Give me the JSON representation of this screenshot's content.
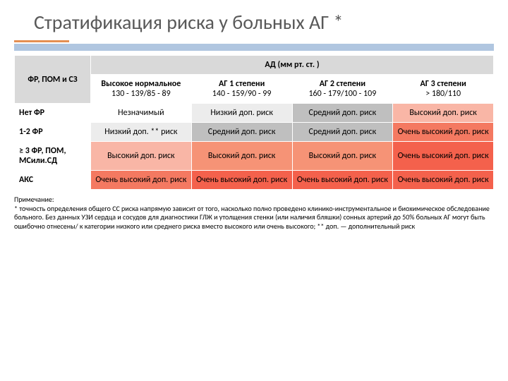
{
  "title": "Стратификация риска у больных АГ *",
  "colors": {
    "accent_orange": "#e48f52",
    "accent_blue": "#b0c6e0",
    "header_grey": "#d9d9d9",
    "cell_white": "#ffffff",
    "cell_vlight": "#ececec",
    "cell_grey": "#bfbfbf",
    "cell_pink": "#f9b6a6",
    "cell_lsalmon": "#f69376",
    "cell_salmon": "#f47961",
    "cell_red": "#f4614c",
    "title_color": "#595959"
  },
  "typography": {
    "title_fontsize": 28,
    "cell_fontsize": 12,
    "footnote_fontsize": 10,
    "font_family": "Calibri"
  },
  "table": {
    "header_left": "ФР, ПОМ и СЗ",
    "header_top": "АД (мм рт. ст. )",
    "columns": [
      "Высокое нормальное 130 - 139/85 - 89",
      "АГ 1 степени 140 - 159/90 - 99",
      "АГ 2 степени 160 - 179/100 - 109",
      "АГ 3 степени > 180/110"
    ],
    "col_hdr": {
      "c0a": "Высокое нормальное",
      "c0b": "130 - 139/85 - 89",
      "c1a": "АГ 1 степени",
      "c1b": "140 - 159/90 - 99",
      "c2a": "АГ 2 степени",
      "c2b": "160 - 179/100 - 109",
      "c3a": "АГ 3 степени",
      "c3b": "> 180/110"
    },
    "rows": [
      {
        "label": "Нет ФР",
        "cells": [
          "Незначимый",
          "Низкий доп. риск",
          "Средний доп. риск",
          "Высокий доп. риск"
        ],
        "cell_colors": [
          "c-white",
          "c-vlight",
          "c-grey",
          "c-pink"
        ]
      },
      {
        "label": "1-2 ФР",
        "cells": [
          "Низкий доп. ** риск",
          "Средний доп. риск",
          "Средний доп. риск",
          "Очень высокий доп. риск"
        ],
        "cell_colors": [
          "c-vlight",
          "c-grey",
          "c-grey",
          "c-salmon"
        ]
      },
      {
        "label": "≥ 3 ФР, ПОМ, МСили.СД",
        "cells": [
          "Высокий доп. риск",
          "Высокий доп. риск",
          "Высокий доп. риск",
          "Очень высокий доп. риск"
        ],
        "cell_colors": [
          "c-pink",
          "c-lsal",
          "c-lsal",
          "c-red"
        ]
      },
      {
        "label": "АКС",
        "cells": [
          "Очень высокий доп. риск",
          "Очень высокий доп. риск",
          "Очень высокий доп. риск",
          "Очень высокий доп. риск"
        ],
        "cell_colors": [
          "c-salmon",
          "c-red",
          "c-red",
          "c-red"
        ]
      }
    ]
  },
  "footnote": {
    "l1": "Примечание:",
    "l2": "* точность определения общего СС риска напрямую зависит от того, насколько полно проведено клинико-инструментальное и биохимическое обследование больного. Без данных УЗИ сердца и сосудов для диагностики ГЛЖ и утолщения стенки (или наличия бляшки) сонных артерий до 50% больных АГ могут быть ошибочно отнесены/ к категории низкого или среднего риска вместо высокого или очень высокого; ** доп. — дополнительный риск"
  }
}
